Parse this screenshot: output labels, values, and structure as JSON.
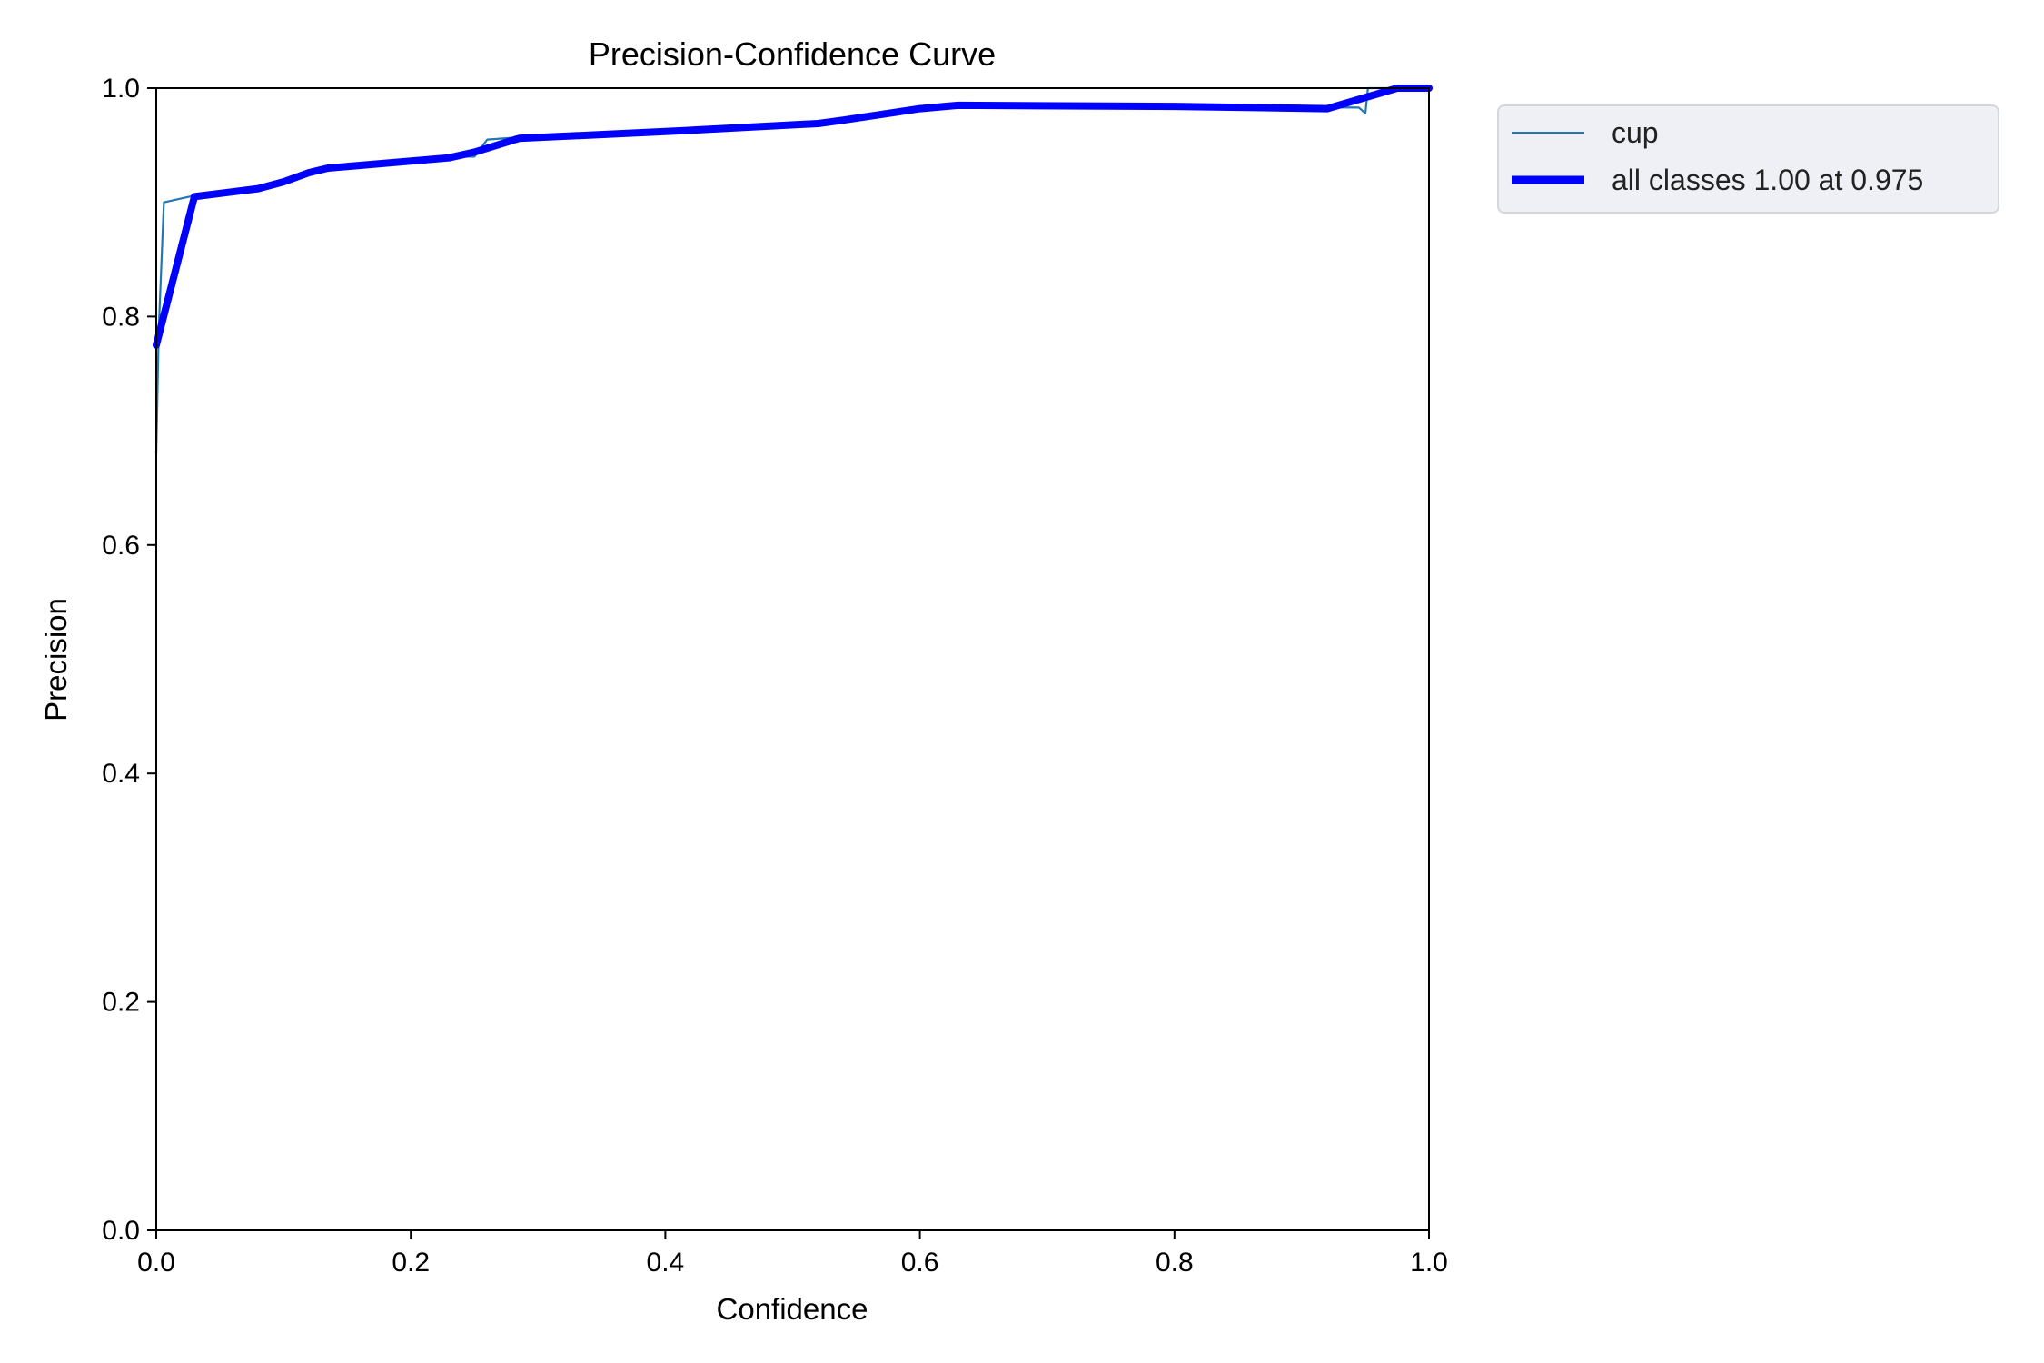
{
  "chart_data": {
    "type": "line",
    "title": "Precision-Confidence Curve",
    "xlabel": "Confidence",
    "ylabel": "Precision",
    "xlim": [
      0.0,
      1.0
    ],
    "ylim": [
      0.0,
      1.0
    ],
    "x_ticks": [
      "0.0",
      "0.2",
      "0.4",
      "0.6",
      "0.8",
      "1.0"
    ],
    "y_ticks": [
      "0.0",
      "0.2",
      "0.4",
      "0.6",
      "0.8",
      "1.0"
    ],
    "grid": false,
    "legend_position": "outside-top-right",
    "series": [
      {
        "name": "cup",
        "color": "#1f77b4",
        "style": "thin",
        "points": [
          [
            0.0,
            0.68
          ],
          [
            0.002,
            0.79
          ],
          [
            0.006,
            0.9
          ],
          [
            0.03,
            0.906
          ],
          [
            0.08,
            0.912
          ],
          [
            0.1,
            0.918
          ],
          [
            0.12,
            0.926
          ],
          [
            0.135,
            0.93
          ],
          [
            0.23,
            0.94
          ],
          [
            0.25,
            0.94
          ],
          [
            0.26,
            0.955
          ],
          [
            0.285,
            0.957
          ],
          [
            0.4,
            0.962
          ],
          [
            0.52,
            0.969
          ],
          [
            0.54,
            0.972
          ],
          [
            0.6,
            0.982
          ],
          [
            0.63,
            0.985
          ],
          [
            0.8,
            0.984
          ],
          [
            0.945,
            0.983
          ],
          [
            0.95,
            0.978
          ],
          [
            0.952,
            1.0
          ],
          [
            1.0,
            1.0
          ]
        ]
      },
      {
        "name": "all classes 1.00 at 0.975",
        "color": "#0000ff",
        "style": "thick",
        "points": [
          [
            0.0,
            0.775
          ],
          [
            0.03,
            0.905
          ],
          [
            0.08,
            0.912
          ],
          [
            0.1,
            0.918
          ],
          [
            0.12,
            0.926
          ],
          [
            0.135,
            0.93
          ],
          [
            0.23,
            0.939
          ],
          [
            0.25,
            0.944
          ],
          [
            0.285,
            0.956
          ],
          [
            0.4,
            0.962
          ],
          [
            0.52,
            0.969
          ],
          [
            0.54,
            0.972
          ],
          [
            0.6,
            0.982
          ],
          [
            0.63,
            0.985
          ],
          [
            0.8,
            0.984
          ],
          [
            0.92,
            0.982
          ],
          [
            0.975,
            1.0
          ],
          [
            1.0,
            1.0
          ]
        ]
      }
    ]
  }
}
